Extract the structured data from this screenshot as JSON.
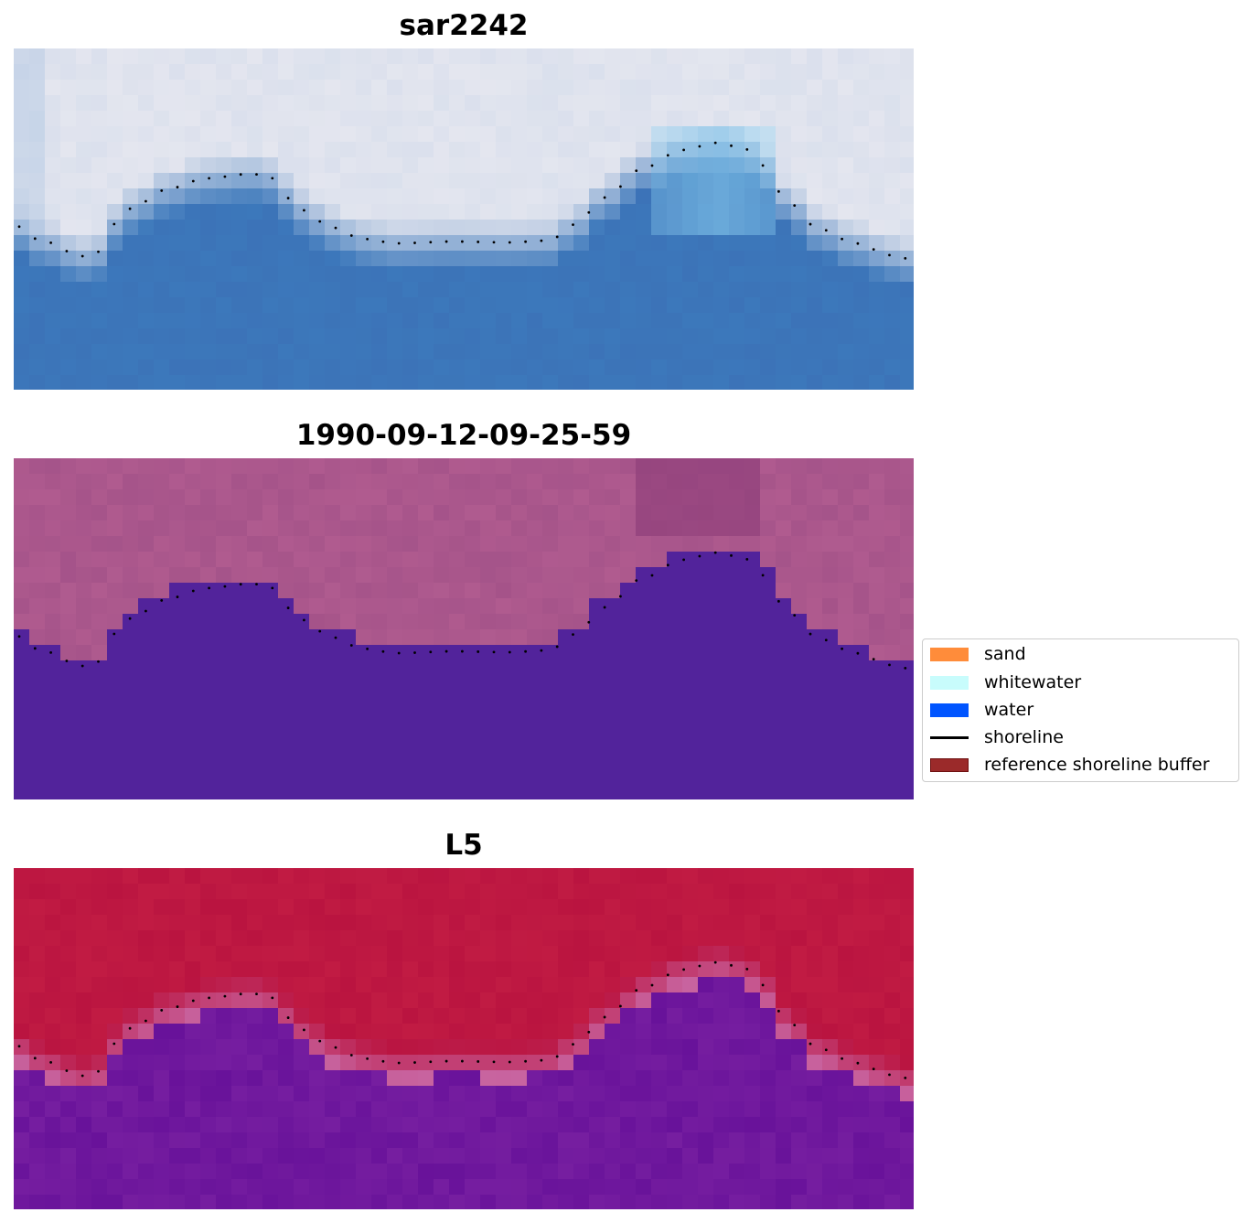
{
  "panels": [
    {
      "title": "sar2242",
      "style": "rgb"
    },
    {
      "title": "1990-09-12-09-25-59",
      "style": "classified"
    },
    {
      "title": "L5",
      "style": "index"
    }
  ],
  "legend": {
    "items": [
      {
        "label": "sand",
        "color": "#ff8c3a",
        "kind": "patch"
      },
      {
        "label": "whitewater",
        "color": "#c8fcfc",
        "kind": "patch"
      },
      {
        "label": "water",
        "color": "#0055ff",
        "kind": "patch"
      },
      {
        "label": "shoreline",
        "color": "#000000",
        "kind": "line"
      },
      {
        "label": "reference shoreline buffer",
        "color": "#9b2a2a",
        "kind": "patch"
      }
    ]
  },
  "colors": {
    "land_rgb": "#e4e6ef",
    "water_rgb": "#3c78bb",
    "surf_rgb": "#8fd3f4",
    "land_classified": "#b05b8f",
    "water_classified": "#52239b",
    "land_index": "#ba1440",
    "water_index": "#761ea0",
    "shoreline_points": "#000000"
  }
}
